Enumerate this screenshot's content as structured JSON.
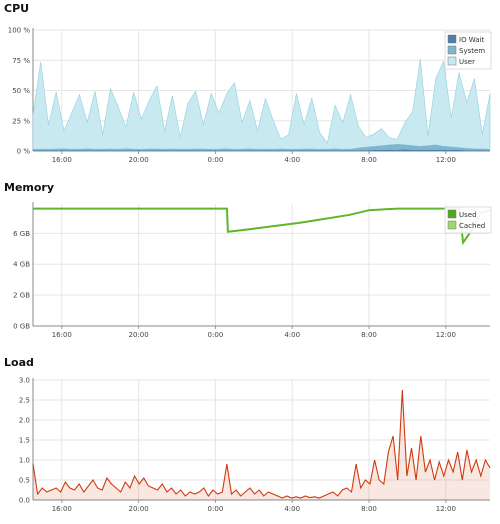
{
  "chart_data": [
    {
      "type": "area",
      "title": "CPU",
      "ylim": [
        0,
        100
      ],
      "y_ticks": [
        "0 %",
        "25 %",
        "50 %",
        "75 %",
        "100 %"
      ],
      "y_tick_values": [
        0,
        25,
        50,
        75,
        100
      ],
      "x_ticks": [
        "16:00",
        "20:00",
        "0:00",
        "4:00",
        "8:00",
        "12:00"
      ],
      "x_tick_hours": [
        16,
        20,
        24,
        28,
        32,
        36
      ],
      "x_start_hour": 14.5,
      "x_end_hour": 38.3,
      "grid": true,
      "legend_position": "top-right",
      "colors": {
        "iowait": "#4f7fa6",
        "system": "#7fb6cf",
        "user": "#c9e9f1",
        "user_line": "#8fd0e0"
      },
      "series": [
        {
          "name": "IO Wait",
          "values": [
            0.5,
            0.4,
            0.5,
            0.6,
            0.5,
            0.4,
            0.5,
            0.6,
            0.5,
            0.4,
            0.5,
            0.5,
            0.6,
            0.5,
            0.4,
            0.5,
            0.6,
            0.5,
            0.5,
            0.4,
            0.5,
            0.6,
            0.5,
            0.4,
            0.5,
            0.6,
            0.5,
            0.5,
            0.6,
            0.5,
            0.4,
            0.5,
            0.5,
            0.4,
            0.5,
            0.6,
            0.5,
            0.4,
            0.5,
            0.6,
            0.5,
            0.4,
            0.6,
            0.7,
            0.8,
            0.9,
            1.0,
            1.1,
            1.2,
            1.0,
            0.9,
            1.0,
            1.1,
            1.0,
            0.9,
            0.8,
            0.7,
            0.6,
            0.6,
            0.5
          ]
        },
        {
          "name": "System",
          "values": [
            1.0,
            1.2,
            1.0,
            1.1,
            1.3,
            1.0,
            1.1,
            1.2,
            1.0,
            1.1,
            1.2,
            1.0,
            1.3,
            1.1,
            1.0,
            1.2,
            1.1,
            1.0,
            1.2,
            1.1,
            1.0,
            1.1,
            1.2,
            1.0,
            1.1,
            1.3,
            1.0,
            1.1,
            1.2,
            1.0,
            1.1,
            1.0,
            1.2,
            1.1,
            1.0,
            1.1,
            1.2,
            1.0,
            1.1,
            1.2,
            1.0,
            1.1,
            2.0,
            2.5,
            3.0,
            3.5,
            4.0,
            4.5,
            4.0,
            3.5,
            3.0,
            3.5,
            4.0,
            3.0,
            2.5,
            2.0,
            1.5,
            1.2,
            1.1,
            1.0
          ]
        },
        {
          "name": "User",
          "values": [
            28,
            72,
            20,
            47,
            15,
            30,
            45,
            22,
            48,
            12,
            50,
            35,
            18,
            47,
            25,
            40,
            52,
            15,
            44,
            10,
            38,
            48,
            20,
            46,
            30,
            45,
            55,
            22,
            40,
            15,
            42,
            24,
            8,
            12,
            46,
            20,
            42,
            14,
            5,
            36,
            22,
            45,
            18,
            8,
            10,
            14,
            6,
            4,
            18,
            28,
            72,
            8,
            55,
            70,
            24,
            62,
            38,
            58,
            12,
            46
          ]
        }
      ]
    },
    {
      "type": "area",
      "title": "Memory",
      "ylim": [
        0,
        7.9
      ],
      "y_ticks": [
        "0 GB",
        "2 GB",
        "4 GB",
        "6 GB"
      ],
      "y_tick_values": [
        0,
        2,
        4,
        6
      ],
      "x_ticks": [
        "16:00",
        "20:00",
        "0:00",
        "4:00",
        "8:00",
        "12:00"
      ],
      "x_tick_hours": [
        16,
        20,
        24,
        28,
        32,
        36
      ],
      "x_start_hour": 14.5,
      "x_end_hour": 38.3,
      "grid": true,
      "legend_position": "top-right",
      "colors": {
        "used": "#4daa1f",
        "cached": "#9fd86a",
        "line": "#5cb82a"
      },
      "series": [
        {
          "name": "Used",
          "x": [
            14.5,
            17.5,
            20.5,
            23.0,
            24.6,
            24.65,
            26.0,
            28.5,
            31.0,
            32.0,
            33.5,
            35.0,
            36.7,
            36.9,
            37.4,
            37.8,
            38.3
          ],
          "values": [
            7.6,
            7.6,
            7.6,
            7.6,
            7.6,
            6.1,
            6.3,
            6.7,
            7.2,
            7.5,
            7.6,
            7.6,
            7.6,
            5.4,
            6.3,
            7.3,
            7.5
          ]
        },
        {
          "name": "Cached",
          "x": [],
          "values": []
        }
      ]
    },
    {
      "type": "line",
      "title": "Load",
      "ylim": [
        0,
        3.0
      ],
      "y_ticks": [
        "0.0",
        "0.5",
        "1.0",
        "1.5",
        "2.0",
        "2.5",
        "3.0"
      ],
      "y_tick_values": [
        0,
        0.5,
        1.0,
        1.5,
        2.0,
        2.5,
        3.0
      ],
      "x_ticks": [
        "16:00",
        "20:00",
        "0:00",
        "4:00",
        "8:00",
        "12:00"
      ],
      "x_tick_hours": [
        16,
        20,
        24,
        28,
        32,
        36
      ],
      "x_start_hour": 14.5,
      "x_end_hour": 38.3,
      "grid": true,
      "colors": {
        "line": "#d03a10"
      },
      "series": [
        {
          "name": "",
          "values": [
            0.9,
            0.15,
            0.3,
            0.2,
            0.25,
            0.3,
            0.2,
            0.45,
            0.3,
            0.25,
            0.4,
            0.2,
            0.35,
            0.5,
            0.3,
            0.25,
            0.55,
            0.4,
            0.3,
            0.2,
            0.45,
            0.3,
            0.6,
            0.4,
            0.55,
            0.35,
            0.3,
            0.25,
            0.4,
            0.2,
            0.3,
            0.15,
            0.25,
            0.1,
            0.2,
            0.15,
            0.2,
            0.3,
            0.1,
            0.25,
            0.15,
            0.2,
            0.9,
            0.15,
            0.25,
            0.1,
            0.2,
            0.3,
            0.15,
            0.25,
            0.1,
            0.2,
            0.15,
            0.1,
            0.05,
            0.1,
            0.05,
            0.08,
            0.05,
            0.1,
            0.06,
            0.08,
            0.05,
            0.1,
            0.15,
            0.2,
            0.1,
            0.25,
            0.3,
            0.2,
            0.9,
            0.3,
            0.5,
            0.4,
            1.0,
            0.5,
            0.4,
            1.2,
            1.6,
            0.5,
            2.75,
            0.6,
            1.3,
            0.5,
            1.6,
            0.7,
            1.0,
            0.5,
            0.95,
            0.6,
            1.0,
            0.7,
            1.2,
            0.5,
            1.25,
            0.7,
            1.0,
            0.6,
            1.0,
            0.8
          ]
        }
      ]
    }
  ]
}
